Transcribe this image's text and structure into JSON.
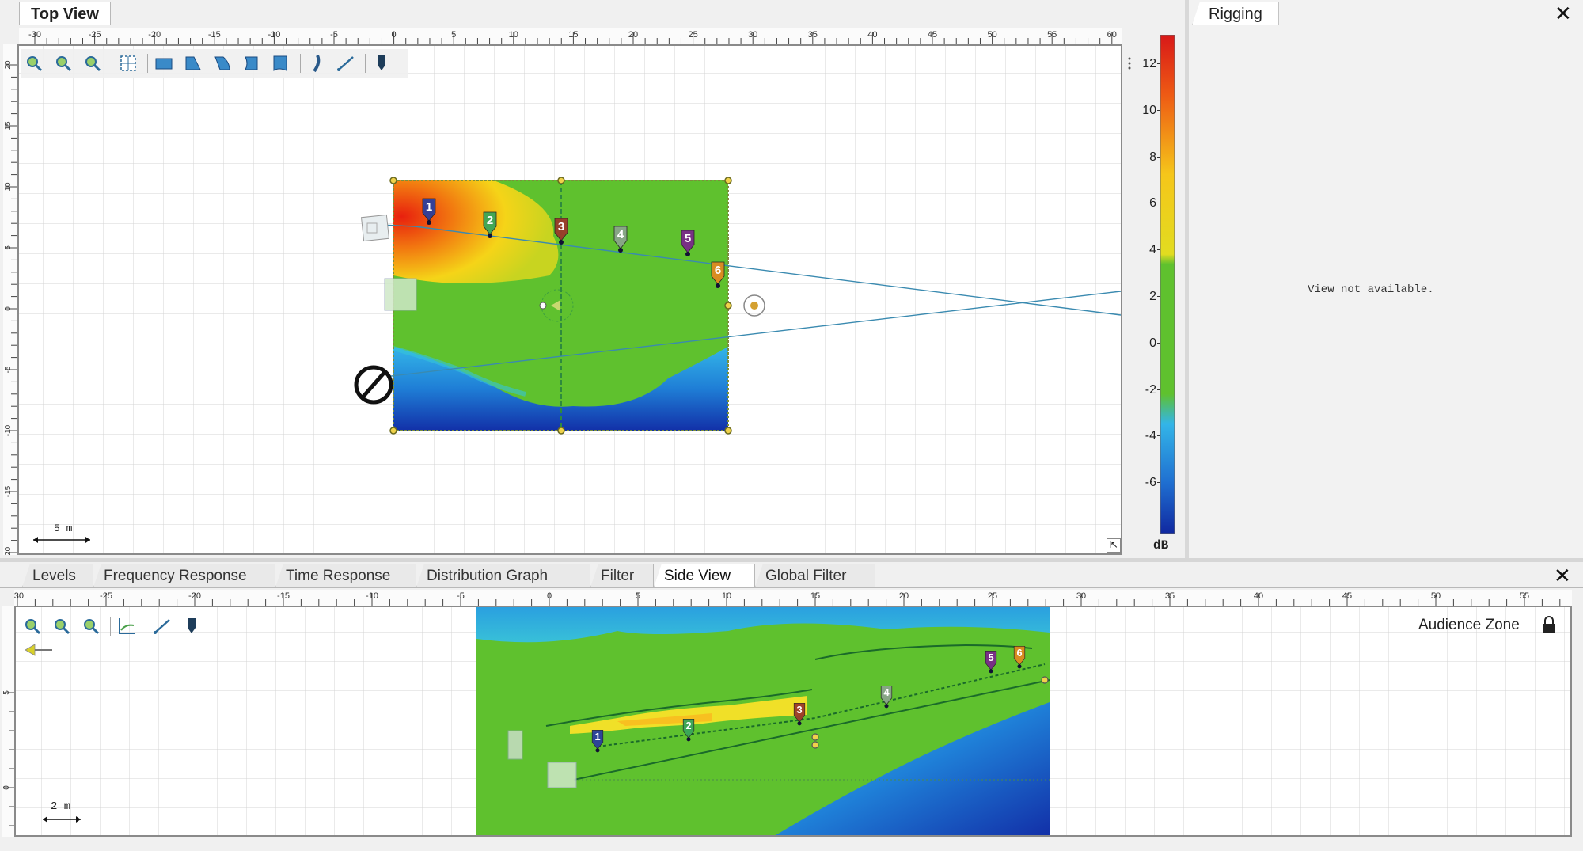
{
  "top_view": {
    "tab_label": "Top View",
    "ruler_x_ticks": [
      "-30",
      "-25",
      "-20",
      "-15",
      "-10",
      "-5",
      "0",
      "5",
      "10",
      "15",
      "20",
      "25",
      "30",
      "35",
      "40",
      "45",
      "50",
      "55",
      "60"
    ],
    "ruler_y_ticks": [
      "20",
      "15",
      "10",
      "5",
      "0",
      "-5",
      "-10",
      "-15",
      "-20"
    ],
    "scale_label": "5 m",
    "toolbar": [
      "zoom-in-icon",
      "zoom-out-icon",
      "zoom-fit-icon",
      "grid-select-icon",
      "rect-zone-icon",
      "trapezoid-zone-icon",
      "fan-zone-icon",
      "arc-zone-icon",
      "quarter-zone-icon",
      "line-array-icon",
      "measure-line-icon",
      "speaker-icon"
    ],
    "speakers": [
      "1",
      "2",
      "3",
      "4",
      "5",
      "6"
    ]
  },
  "colorbar": {
    "ticks": [
      "12",
      "10",
      "8",
      "6",
      "4",
      "2",
      "0",
      "-2",
      "-4",
      "-6"
    ],
    "unit": "dB"
  },
  "rigging": {
    "tab_label": "Rigging",
    "message": "View not available."
  },
  "bottom_tabs": [
    {
      "label": "Levels"
    },
    {
      "label": "Frequency Response"
    },
    {
      "label": "Time Response"
    },
    {
      "label": "Distribution Graph"
    },
    {
      "label": "Filter"
    },
    {
      "label": "Side View"
    },
    {
      "label": "Global Filter"
    }
  ],
  "side_view": {
    "ruler_x_ticks": [
      "-30",
      "-25",
      "-20",
      "-15",
      "-10",
      "-5",
      "0",
      "5",
      "10",
      "15",
      "20",
      "25",
      "30",
      "35",
      "40",
      "45",
      "50",
      "55"
    ],
    "ruler_y_ticks": [
      "5",
      "0"
    ],
    "scale_label": "2 m",
    "audience_zone_label": "Audience Zone",
    "toolbar": [
      "zoom-in-icon",
      "zoom-out-icon",
      "zoom-fit-icon",
      "axis-chart-icon",
      "line-tool-icon",
      "speaker-icon"
    ],
    "speakers": [
      "1",
      "2",
      "3",
      "4",
      "5",
      "6"
    ]
  },
  "colors": {
    "green": "#5fc12e",
    "speaker_1": "#2b3f9e",
    "speaker_2": "#3aa65a",
    "speaker_3": "#9c3a2a",
    "speaker_4": "#8aa58a",
    "speaker_5": "#7a2a8a",
    "speaker_6": "#e08a20"
  }
}
